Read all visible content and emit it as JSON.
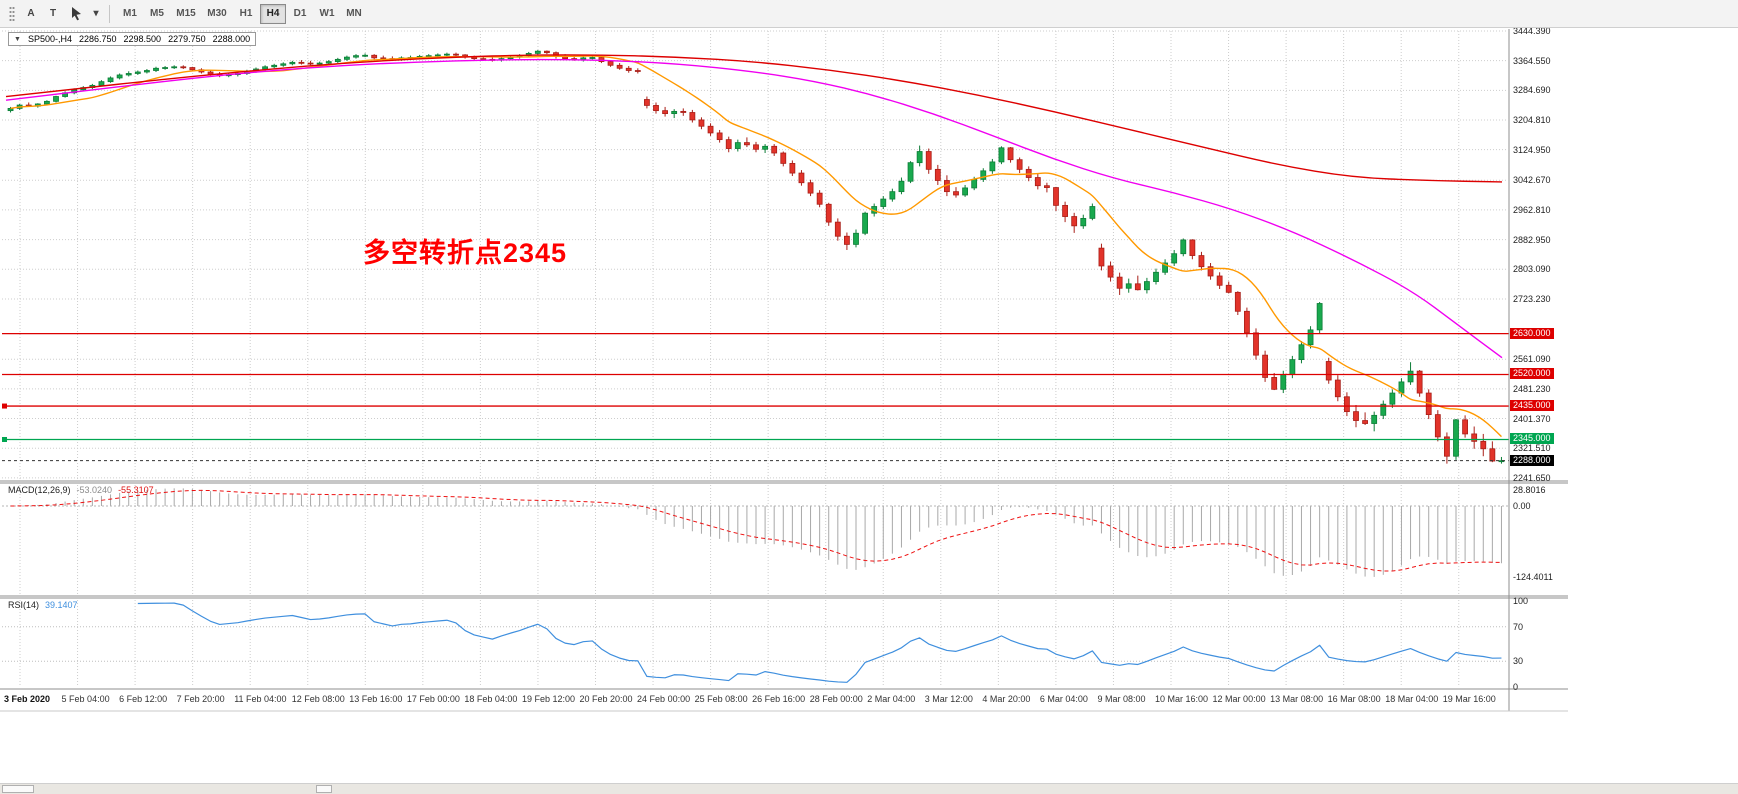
{
  "toolbar": {
    "icon_a": "A",
    "icon_t": "T",
    "timeframes": [
      {
        "label": "M1",
        "active": false
      },
      {
        "label": "M5",
        "active": false
      },
      {
        "label": "M15",
        "active": false
      },
      {
        "label": "M30",
        "active": false
      },
      {
        "label": "H1",
        "active": false
      },
      {
        "label": "H4",
        "active": true
      },
      {
        "label": "D1",
        "active": false
      },
      {
        "label": "W1",
        "active": false
      },
      {
        "label": "MN",
        "active": false
      }
    ]
  },
  "chart": {
    "title": {
      "collapse_glyph": "▼",
      "symbol": "SP500-,H4",
      "open": "2286.750",
      "high": "2298.500",
      "low": "2279.750",
      "close": "2288.000"
    },
    "annotation": {
      "text": "多空转折点2345",
      "color": "#ff0000"
    },
    "hlines": [
      {
        "price": 2630,
        "color": "#dd0000",
        "marker": false
      },
      {
        "price": 2520,
        "color": "#dd0000",
        "marker": false
      },
      {
        "price": 2435,
        "color": "#dd0000",
        "marker": true
      },
      {
        "price": 2345,
        "color": "#00a651",
        "marker": true
      }
    ],
    "special_price_badges": [
      {
        "value": "2630.000",
        "price": 2630,
        "bg": "#dd0000"
      },
      {
        "value": "2520.000",
        "price": 2520,
        "bg": "#dd0000"
      },
      {
        "value": "2435.000",
        "price": 2435,
        "bg": "#dd0000"
      },
      {
        "value": "2345.000",
        "price": 2345,
        "bg": "#00a651"
      }
    ],
    "current_price": {
      "value": "2288.000",
      "price": 2288,
      "bg": "#000000"
    }
  },
  "chart_data": {
    "type": "candlestick",
    "symbol": "SP500-",
    "timeframe": "H4",
    "title": "SP500-,H4",
    "ylim": [
      2236,
      3447
    ],
    "up_color": "#19a94e",
    "down_color": "#e2332a",
    "y_axis_labels": [
      "3444.390",
      "3364.550",
      "3284.690",
      "3204.810",
      "3124.950",
      "3042.670",
      "2962.810",
      "2882.950",
      "2803.090",
      "2723.230",
      "2561.090",
      "2481.230",
      "2401.370",
      "2321.510",
      "2241.650"
    ],
    "x_labels": [
      "3 Feb 2020",
      "5 Feb 04:00",
      "6 Feb 12:00",
      "7 Feb 20:00",
      "11 Feb 04:00",
      "12 Feb 08:00",
      "13 Feb 16:00",
      "17 Feb 00:00",
      "18 Feb 04:00",
      "19 Feb 12:00",
      "20 Feb 20:00",
      "24 Feb 00:00",
      "25 Feb 08:00",
      "26 Feb 16:00",
      "28 Feb 00:00",
      "2 Mar 04:00",
      "3 Mar 12:00",
      "4 Mar 20:00",
      "6 Mar 04:00",
      "9 Mar 08:00",
      "10 Mar 16:00",
      "12 Mar 00:00",
      "13 Mar 08:00",
      "16 Mar 08:00",
      "18 Mar 04:00",
      "19 Mar 16:00"
    ],
    "ohlc": [
      [
        3230,
        3240,
        3225,
        3236
      ],
      [
        3236,
        3248,
        3232,
        3245
      ],
      [
        3245,
        3252,
        3240,
        3242
      ],
      [
        3242,
        3250,
        3238,
        3248
      ],
      [
        3248,
        3258,
        3244,
        3255
      ],
      [
        3255,
        3270,
        3252,
        3268
      ],
      [
        3268,
        3282,
        3265,
        3278
      ],
      [
        3278,
        3290,
        3274,
        3286
      ],
      [
        3286,
        3296,
        3282,
        3292
      ],
      [
        3292,
        3302,
        3288,
        3298
      ],
      [
        3298,
        3312,
        3295,
        3308
      ],
      [
        3308,
        3322,
        3305,
        3318
      ],
      [
        3318,
        3330,
        3314,
        3326
      ],
      [
        3326,
        3336,
        3322,
        3330
      ],
      [
        3330,
        3338,
        3326,
        3334
      ],
      [
        3334,
        3342,
        3330,
        3338
      ],
      [
        3338,
        3348,
        3334,
        3344
      ],
      [
        3344,
        3350,
        3340,
        3346
      ],
      [
        3346,
        3352,
        3342,
        3348
      ],
      [
        3348,
        3352,
        3342,
        3346
      ],
      [
        3346,
        3348,
        3336,
        3340
      ],
      [
        3340,
        3344,
        3330,
        3334
      ],
      [
        3334,
        3338,
        3324,
        3328
      ],
      [
        3328,
        3334,
        3320,
        3324
      ],
      [
        3324,
        3332,
        3320,
        3327
      ],
      [
        3327,
        3334,
        3322,
        3330
      ],
      [
        3330,
        3340,
        3326,
        3336
      ],
      [
        3336,
        3346,
        3332,
        3342
      ],
      [
        3342,
        3352,
        3338,
        3348
      ],
      [
        3348,
        3356,
        3344,
        3352
      ],
      [
        3352,
        3360,
        3348,
        3356
      ],
      [
        3356,
        3364,
        3352,
        3360
      ],
      [
        3360,
        3366,
        3354,
        3358
      ],
      [
        3358,
        3364,
        3352,
        3356
      ],
      [
        3356,
        3362,
        3352,
        3358
      ],
      [
        3358,
        3366,
        3354,
        3362
      ],
      [
        3362,
        3372,
        3358,
        3368
      ],
      [
        3368,
        3378,
        3364,
        3374
      ],
      [
        3374,
        3382,
        3370,
        3378
      ],
      [
        3378,
        3384,
        3374,
        3379
      ],
      [
        3379,
        3382,
        3368,
        3372
      ],
      [
        3372,
        3378,
        3366,
        3370
      ],
      [
        3370,
        3376,
        3364,
        3368
      ],
      [
        3368,
        3376,
        3364,
        3372
      ],
      [
        3372,
        3378,
        3368,
        3373
      ],
      [
        3373,
        3380,
        3369,
        3376
      ],
      [
        3376,
        3382,
        3372,
        3378
      ],
      [
        3378,
        3384,
        3374,
        3380
      ],
      [
        3380,
        3386,
        3376,
        3382
      ],
      [
        3382,
        3386,
        3376,
        3380
      ],
      [
        3380,
        3382,
        3370,
        3374
      ],
      [
        3374,
        3378,
        3366,
        3370
      ],
      [
        3370,
        3376,
        3364,
        3368
      ],
      [
        3368,
        3374,
        3362,
        3366
      ],
      [
        3366,
        3374,
        3362,
        3370
      ],
      [
        3370,
        3378,
        3366,
        3374
      ],
      [
        3374,
        3382,
        3370,
        3378
      ],
      [
        3378,
        3388,
        3374,
        3384
      ],
      [
        3384,
        3393,
        3380,
        3390
      ],
      [
        3390,
        3392,
        3382,
        3386
      ],
      [
        3386,
        3389,
        3370,
        3376
      ],
      [
        3376,
        3382,
        3366,
        3370
      ],
      [
        3370,
        3378,
        3364,
        3368
      ],
      [
        3368,
        3376,
        3362,
        3372
      ],
      [
        3372,
        3378,
        3368,
        3373
      ],
      [
        3373,
        3375,
        3358,
        3362
      ],
      [
        3362,
        3366,
        3348,
        3352
      ],
      [
        3352,
        3358,
        3340,
        3344
      ],
      [
        3344,
        3350,
        3332,
        3338
      ],
      [
        3338,
        3344,
        3330,
        3337
      ],
      [
        3260,
        3268,
        3236,
        3244
      ],
      [
        3244,
        3252,
        3222,
        3230
      ],
      [
        3230,
        3240,
        3214,
        3222
      ],
      [
        3222,
        3234,
        3210,
        3228
      ],
      [
        3228,
        3236,
        3216,
        3225
      ],
      [
        3225,
        3232,
        3198,
        3205
      ],
      [
        3205,
        3212,
        3180,
        3188
      ],
      [
        3188,
        3196,
        3162,
        3170
      ],
      [
        3170,
        3178,
        3144,
        3152
      ],
      [
        3152,
        3160,
        3118,
        3128
      ],
      [
        3128,
        3152,
        3120,
        3144
      ],
      [
        3144,
        3158,
        3132,
        3138
      ],
      [
        3138,
        3146,
        3118,
        3126
      ],
      [
        3126,
        3140,
        3116,
        3134
      ],
      [
        3134,
        3140,
        3108,
        3116
      ],
      [
        3116,
        3120,
        3080,
        3088
      ],
      [
        3088,
        3096,
        3054,
        3062
      ],
      [
        3062,
        3070,
        3028,
        3036
      ],
      [
        3036,
        3044,
        3000,
        3008
      ],
      [
        3008,
        3016,
        2970,
        2978
      ],
      [
        2978,
        2982,
        2920,
        2930
      ],
      [
        2930,
        2940,
        2880,
        2892
      ],
      [
        2892,
        2902,
        2855,
        2870
      ],
      [
        2870,
        2910,
        2862,
        2900
      ],
      [
        2900,
        2958,
        2895,
        2954
      ],
      [
        2954,
        2980,
        2945,
        2972
      ],
      [
        2972,
        3000,
        2965,
        2992
      ],
      [
        2992,
        3020,
        2985,
        3012
      ],
      [
        3012,
        3050,
        3005,
        3040
      ],
      [
        3040,
        3094,
        3035,
        3090
      ],
      [
        3090,
        3136,
        3080,
        3120
      ],
      [
        3120,
        3128,
        3060,
        3072
      ],
      [
        3072,
        3084,
        3030,
        3042
      ],
      [
        3042,
        3056,
        3000,
        3012
      ],
      [
        3012,
        3024,
        2996,
        3003
      ],
      [
        3003,
        3030,
        2998,
        3022
      ],
      [
        3022,
        3052,
        3016,
        3045
      ],
      [
        3045,
        3075,
        3038,
        3068
      ],
      [
        3068,
        3100,
        3060,
        3092
      ],
      [
        3092,
        3134,
        3086,
        3130
      ],
      [
        3130,
        3132,
        3090,
        3098
      ],
      [
        3098,
        3104,
        3062,
        3072
      ],
      [
        3072,
        3080,
        3040,
        3050
      ],
      [
        3050,
        3060,
        3018,
        3028
      ],
      [
        3028,
        3036,
        3010,
        3023
      ],
      [
        3023,
        3025,
        2960,
        2975
      ],
      [
        2975,
        2985,
        2930,
        2945
      ],
      [
        2945,
        2955,
        2901,
        2920
      ],
      [
        2920,
        2950,
        2912,
        2940
      ],
      [
        2940,
        2980,
        2935,
        2972
      ],
      [
        2860,
        2872,
        2800,
        2812
      ],
      [
        2812,
        2824,
        2770,
        2782
      ],
      [
        2782,
        2794,
        2734,
        2752
      ],
      [
        2752,
        2778,
        2740,
        2764
      ],
      [
        2764,
        2786,
        2746,
        2748
      ],
      [
        2748,
        2780,
        2738,
        2770
      ],
      [
        2770,
        2805,
        2762,
        2795
      ],
      [
        2795,
        2830,
        2788,
        2820
      ],
      [
        2820,
        2855,
        2812,
        2845
      ],
      [
        2845,
        2886,
        2838,
        2882
      ],
      [
        2882,
        2884,
        2830,
        2840
      ],
      [
        2840,
        2850,
        2800,
        2810
      ],
      [
        2810,
        2820,
        2775,
        2785
      ],
      [
        2785,
        2795,
        2750,
        2760
      ],
      [
        2760,
        2770,
        2738,
        2741
      ],
      [
        2741,
        2744,
        2680,
        2690
      ],
      [
        2690,
        2700,
        2620,
        2632
      ],
      [
        2632,
        2644,
        2560,
        2572
      ],
      [
        2572,
        2584,
        2500,
        2512
      ],
      [
        2512,
        2524,
        2478,
        2480
      ],
      [
        2480,
        2530,
        2470,
        2520
      ],
      [
        2520,
        2570,
        2510,
        2560
      ],
      [
        2560,
        2610,
        2550,
        2600
      ],
      [
        2600,
        2650,
        2590,
        2640
      ],
      [
        2640,
        2715,
        2630,
        2711
      ],
      [
        2555,
        2565,
        2495,
        2505
      ],
      [
        2505,
        2518,
        2448,
        2460
      ],
      [
        2460,
        2472,
        2408,
        2420
      ],
      [
        2420,
        2438,
        2378,
        2396
      ],
      [
        2396,
        2418,
        2384,
        2388
      ],
      [
        2388,
        2420,
        2367,
        2410
      ],
      [
        2410,
        2450,
        2400,
        2440
      ],
      [
        2440,
        2480,
        2430,
        2470
      ],
      [
        2470,
        2510,
        2460,
        2500
      ],
      [
        2500,
        2553,
        2492,
        2529
      ],
      [
        2529,
        2532,
        2460,
        2470
      ],
      [
        2470,
        2480,
        2400,
        2412
      ],
      [
        2412,
        2424,
        2340,
        2352
      ],
      [
        2352,
        2364,
        2280,
        2300
      ],
      [
        2300,
        2400,
        2290,
        2398
      ],
      [
        2398,
        2410,
        2350,
        2360
      ],
      [
        2360,
        2380,
        2320,
        2340
      ],
      [
        2340,
        2360,
        2300,
        2320
      ],
      [
        2320,
        2340,
        2284,
        2287
      ],
      [
        2287,
        2298,
        2280,
        2288
      ]
    ],
    "moving_averages": [
      {
        "name": "ma-fast",
        "color": "#ff9900",
        "method": "sma",
        "period": 10
      },
      {
        "name": "ma-mid",
        "color": "#f000f0",
        "method": "points",
        "points": [
          [
            0,
            3258
          ],
          [
            0.05,
            3282
          ],
          [
            0.1,
            3306
          ],
          [
            0.15,
            3328
          ],
          [
            0.2,
            3345
          ],
          [
            0.25,
            3357
          ],
          [
            0.3,
            3364
          ],
          [
            0.35,
            3368
          ],
          [
            0.4,
            3366
          ],
          [
            0.45,
            3356
          ],
          [
            0.5,
            3335
          ],
          [
            0.54,
            3310
          ],
          [
            0.58,
            3272
          ],
          [
            0.62,
            3222
          ],
          [
            0.66,
            3162
          ],
          [
            0.7,
            3100
          ],
          [
            0.74,
            3048
          ],
          [
            0.78,
            3010
          ],
          [
            0.82,
            2965
          ],
          [
            0.86,
            2905
          ],
          [
            0.9,
            2830
          ],
          [
            0.94,
            2745
          ],
          [
            0.97,
            2655
          ],
          [
            1,
            2565
          ]
        ]
      },
      {
        "name": "ma-slow",
        "color": "#dd0000",
        "method": "points",
        "points": [
          [
            0,
            3268
          ],
          [
            0.05,
            3290
          ],
          [
            0.1,
            3312
          ],
          [
            0.15,
            3332
          ],
          [
            0.2,
            3350
          ],
          [
            0.25,
            3364
          ],
          [
            0.3,
            3374
          ],
          [
            0.35,
            3380
          ],
          [
            0.4,
            3380
          ],
          [
            0.45,
            3374
          ],
          [
            0.5,
            3362
          ],
          [
            0.55,
            3340
          ],
          [
            0.6,
            3310
          ],
          [
            0.65,
            3272
          ],
          [
            0.7,
            3228
          ],
          [
            0.75,
            3180
          ],
          [
            0.8,
            3132
          ],
          [
            0.85,
            3084
          ],
          [
            0.9,
            3050
          ],
          [
            0.95,
            3042
          ],
          [
            1,
            3038
          ]
        ]
      }
    ],
    "indicators": [
      {
        "type": "macd",
        "label": "MACD(12,26,9)",
        "main_value": "-53.0240",
        "signal_value": "-55.3107",
        "params": [
          12,
          26,
          9
        ],
        "axis_labels": [
          "28.8016",
          "0.00",
          "-124.4011"
        ],
        "axis_values": [
          28.8016,
          0,
          -124.4011
        ],
        "histogram_color": "#a8a8a8",
        "signal_color": "#ee1111"
      },
      {
        "type": "rsi",
        "label": "RSI(14)",
        "value": "39.1407",
        "period": 14,
        "levels": [
          70,
          30
        ],
        "axis_labels": [
          "100",
          "70",
          "30",
          "0"
        ],
        "axis_values": [
          100,
          70,
          30,
          0
        ],
        "color": "#3f8fde"
      }
    ]
  }
}
